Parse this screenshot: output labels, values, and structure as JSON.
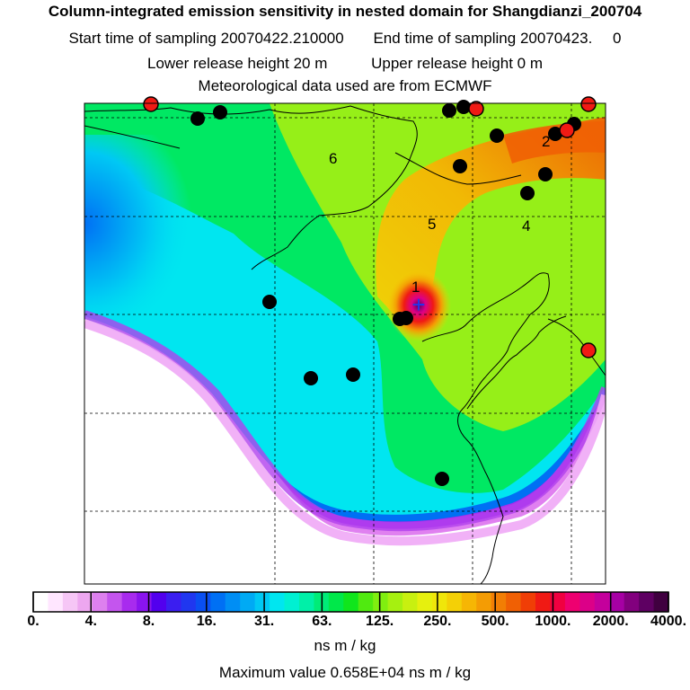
{
  "header": {
    "title": "Column-integrated emission sensitivity in nested domain for Shangdianzi_200704",
    "start_label": "Start time of sampling",
    "start_value": "20070422.210000",
    "end_label": "End time of sampling",
    "end_value": "20070423.",
    "end_suffix": "0",
    "lower_label": "Lower release height",
    "lower_value": "20 m",
    "upper_label": "Upper release height",
    "upper_value": "0 m",
    "met_line": "Meteorological data used are from ECMWF"
  },
  "footer": {
    "units": "ns m / kg",
    "max_line": "Maximum value  0.658E+04 ns m / kg"
  },
  "chart_data": {
    "type": "heatmap",
    "title": "Column-integrated emission sensitivity in nested domain for Shangdianzi_200704",
    "colorbar_labels": [
      "0.",
      "4.",
      "8.",
      "16.",
      "31.",
      "63.",
      "125.",
      "250.",
      "500.",
      "1000.",
      "2000.",
      "4000."
    ],
    "colorbar_colors": [
      "#ffffff",
      "#ffe6ff",
      "#f6c6f6",
      "#eda7f0",
      "#dd80ee",
      "#c455ee",
      "#a82bee",
      "#8a14ee",
      "#5200ee",
      "#3b1ef0",
      "#2037f0",
      "#0a4ff2",
      "#0070f4",
      "#008ef4",
      "#00aaf4",
      "#00c8f4",
      "#00e6f0",
      "#00f0d2",
      "#00f0a8",
      "#00ec78",
      "#00e84a",
      "#10e61c",
      "#50ea10",
      "#80ee10",
      "#a6f010",
      "#c8f010",
      "#e6f00e",
      "#f0e60a",
      "#f4d006",
      "#f6b604",
      "#f49c04",
      "#f27e04",
      "#f06004",
      "#f03e06",
      "#f01a14",
      "#f00040",
      "#ee0070",
      "#dc0088",
      "#c4009c",
      "#a600a4",
      "#82007e",
      "#5e0062",
      "#400040"
    ],
    "units": "ns m / kg",
    "max_value": 6580,
    "number_labels": [
      "1",
      "2",
      "4",
      "5",
      "6"
    ],
    "release_marker": "+",
    "receptor_label": "1"
  }
}
